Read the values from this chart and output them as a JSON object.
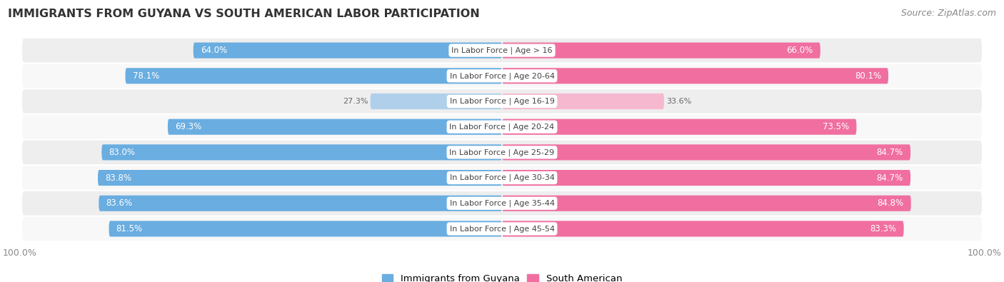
{
  "title": "IMMIGRANTS FROM GUYANA VS SOUTH AMERICAN LABOR PARTICIPATION",
  "source": "Source: ZipAtlas.com",
  "categories": [
    "In Labor Force | Age > 16",
    "In Labor Force | Age 20-64",
    "In Labor Force | Age 16-19",
    "In Labor Force | Age 20-24",
    "In Labor Force | Age 25-29",
    "In Labor Force | Age 30-34",
    "In Labor Force | Age 35-44",
    "In Labor Force | Age 45-54"
  ],
  "guyana_values": [
    64.0,
    78.1,
    27.3,
    69.3,
    83.0,
    83.8,
    83.6,
    81.5
  ],
  "south_american_values": [
    66.0,
    80.1,
    33.6,
    73.5,
    84.7,
    84.7,
    84.8,
    83.3
  ],
  "guyana_color": "#6aade0",
  "guyana_color_light": "#b0cfea",
  "south_american_color": "#f06fa0",
  "south_american_color_light": "#f5b8cf",
  "row_bg_even": "#eeeeee",
  "row_bg_odd": "#f8f8f8",
  "label_white": "#ffffff",
  "label_dark": "#666666",
  "center_label_color": "#444444",
  "legend_guyana": "Immigrants from Guyana",
  "legend_sa": "South American",
  "figsize": [
    14.06,
    3.95
  ],
  "dpi": 100
}
